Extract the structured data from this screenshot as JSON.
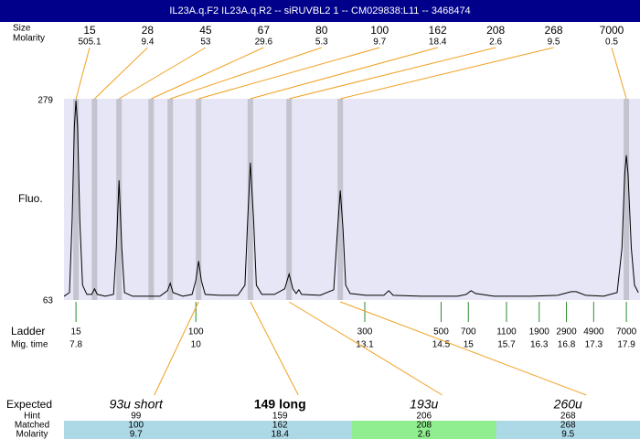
{
  "header": {
    "title": "IL23A.q.F2  IL23A.q.R2 -- siRUVBL2 1 -- CM029838:L11 -- 3468474"
  },
  "chart_data": {
    "type": "line",
    "y_label": "Fluo.",
    "ylim": [
      63,
      279
    ],
    "yticks": [
      63,
      279
    ],
    "xlim": [
      7.58,
      18.15
    ],
    "color": "#000000",
    "x": [
      7.58,
      7.68,
      7.73,
      7.77,
      7.8,
      7.83,
      7.87,
      7.92,
      8.0,
      8.09,
      8.14,
      8.19,
      8.34,
      8.49,
      8.54,
      8.59,
      8.64,
      8.69,
      8.84,
      9.09,
      9.34,
      9.48,
      9.53,
      9.58,
      9.76,
      9.93,
      10.0,
      10.05,
      10.1,
      10.17,
      10.43,
      10.77,
      10.9,
      10.95,
      11.0,
      11.06,
      11.11,
      11.21,
      11.44,
      11.63,
      11.71,
      11.78,
      11.84,
      11.89,
      11.94,
      12.28,
      12.53,
      12.6,
      12.65,
      12.7,
      12.75,
      12.83,
      13.12,
      13.45,
      13.54,
      13.62,
      14.13,
      14.8,
      14.96,
      15.05,
      15.13,
      15.47,
      16.14,
      16.64,
      16.89,
      16.98,
      17.15,
      17.48,
      17.73,
      17.82,
      17.87,
      17.9,
      17.93,
      17.99,
      18.05,
      18.12
    ],
    "values": [
      68,
      72,
      150,
      250,
      279,
      250,
      150,
      80,
      70,
      70,
      76,
      70,
      68,
      70,
      120,
      193,
      120,
      72,
      68,
      68,
      68,
      74,
      82,
      72,
      68,
      70,
      85,
      106,
      85,
      70,
      69,
      69,
      80,
      150,
      212,
      150,
      80,
      70,
      70,
      76,
      92,
      76,
      71,
      75,
      70,
      69,
      75,
      140,
      182,
      140,
      80,
      71,
      69,
      69,
      74,
      69,
      68,
      68,
      70,
      74,
      71,
      68,
      68,
      69,
      73,
      73,
      69,
      68,
      72,
      120,
      200,
      220,
      200,
      120,
      80,
      72
    ]
  },
  "peaks": {
    "size_label": "Size",
    "molarity_label": "Molarity",
    "band_color": "#c4c4d0",
    "link_color": "#f0a020",
    "items": [
      {
        "size": 15,
        "molarity": 505.1,
        "time": 7.8
      },
      {
        "size": 28,
        "molarity": 9.4,
        "time": 8.14
      },
      {
        "size": 45,
        "molarity": 53,
        "time": 8.59
      },
      {
        "size": 67,
        "molarity": 29.6,
        "time": 9.18
      },
      {
        "size": 80,
        "molarity": 5.3,
        "time": 9.53
      },
      {
        "size": 100,
        "molarity": 9.7,
        "time": 10.05
      },
      {
        "size": 162,
        "molarity": 18.4,
        "time": 11.0
      },
      {
        "size": 208,
        "molarity": 2.6,
        "time": 11.71
      },
      {
        "size": 268,
        "molarity": 9.5,
        "time": 12.65
      },
      {
        "size": 7000,
        "molarity": 0.5,
        "time": 17.9
      }
    ]
  },
  "ladder": {
    "label": "Ladder",
    "time_label": "Mig. time",
    "color": "#2e8b2e",
    "items": [
      {
        "size": 15,
        "time": 7.8
      },
      {
        "size": 100,
        "time": 10
      },
      {
        "size": 300,
        "time": 13.1
      },
      {
        "size": 500,
        "time": 14.5
      },
      {
        "size": 700,
        "time": 15
      },
      {
        "size": 1100,
        "time": 15.7
      },
      {
        "size": 1900,
        "time": 16.3
      },
      {
        "size": 2900,
        "time": 16.8
      },
      {
        "size": 4900,
        "time": 17.3
      },
      {
        "size": 7000,
        "time": 17.9
      }
    ]
  },
  "expected": {
    "labels": [
      "Expected",
      "Hint",
      "Matched",
      "Molarity"
    ],
    "columns": [
      {
        "name": "93u short",
        "hint": 99,
        "matched": 100,
        "molarity": 9.7,
        "color": "#add8e6",
        "bold": false
      },
      {
        "name": "149 long",
        "hint": 159,
        "matched": 162,
        "molarity": 18.4,
        "color": "#add8e6",
        "bold": true
      },
      {
        "name": "193u",
        "hint": 206,
        "matched": 208,
        "molarity": 2.6,
        "color": "#90ee90",
        "bold": false
      },
      {
        "name": "260u",
        "hint": 268,
        "matched": 268,
        "molarity": 9.5,
        "color": "#add8e6",
        "bold": false
      }
    ]
  }
}
